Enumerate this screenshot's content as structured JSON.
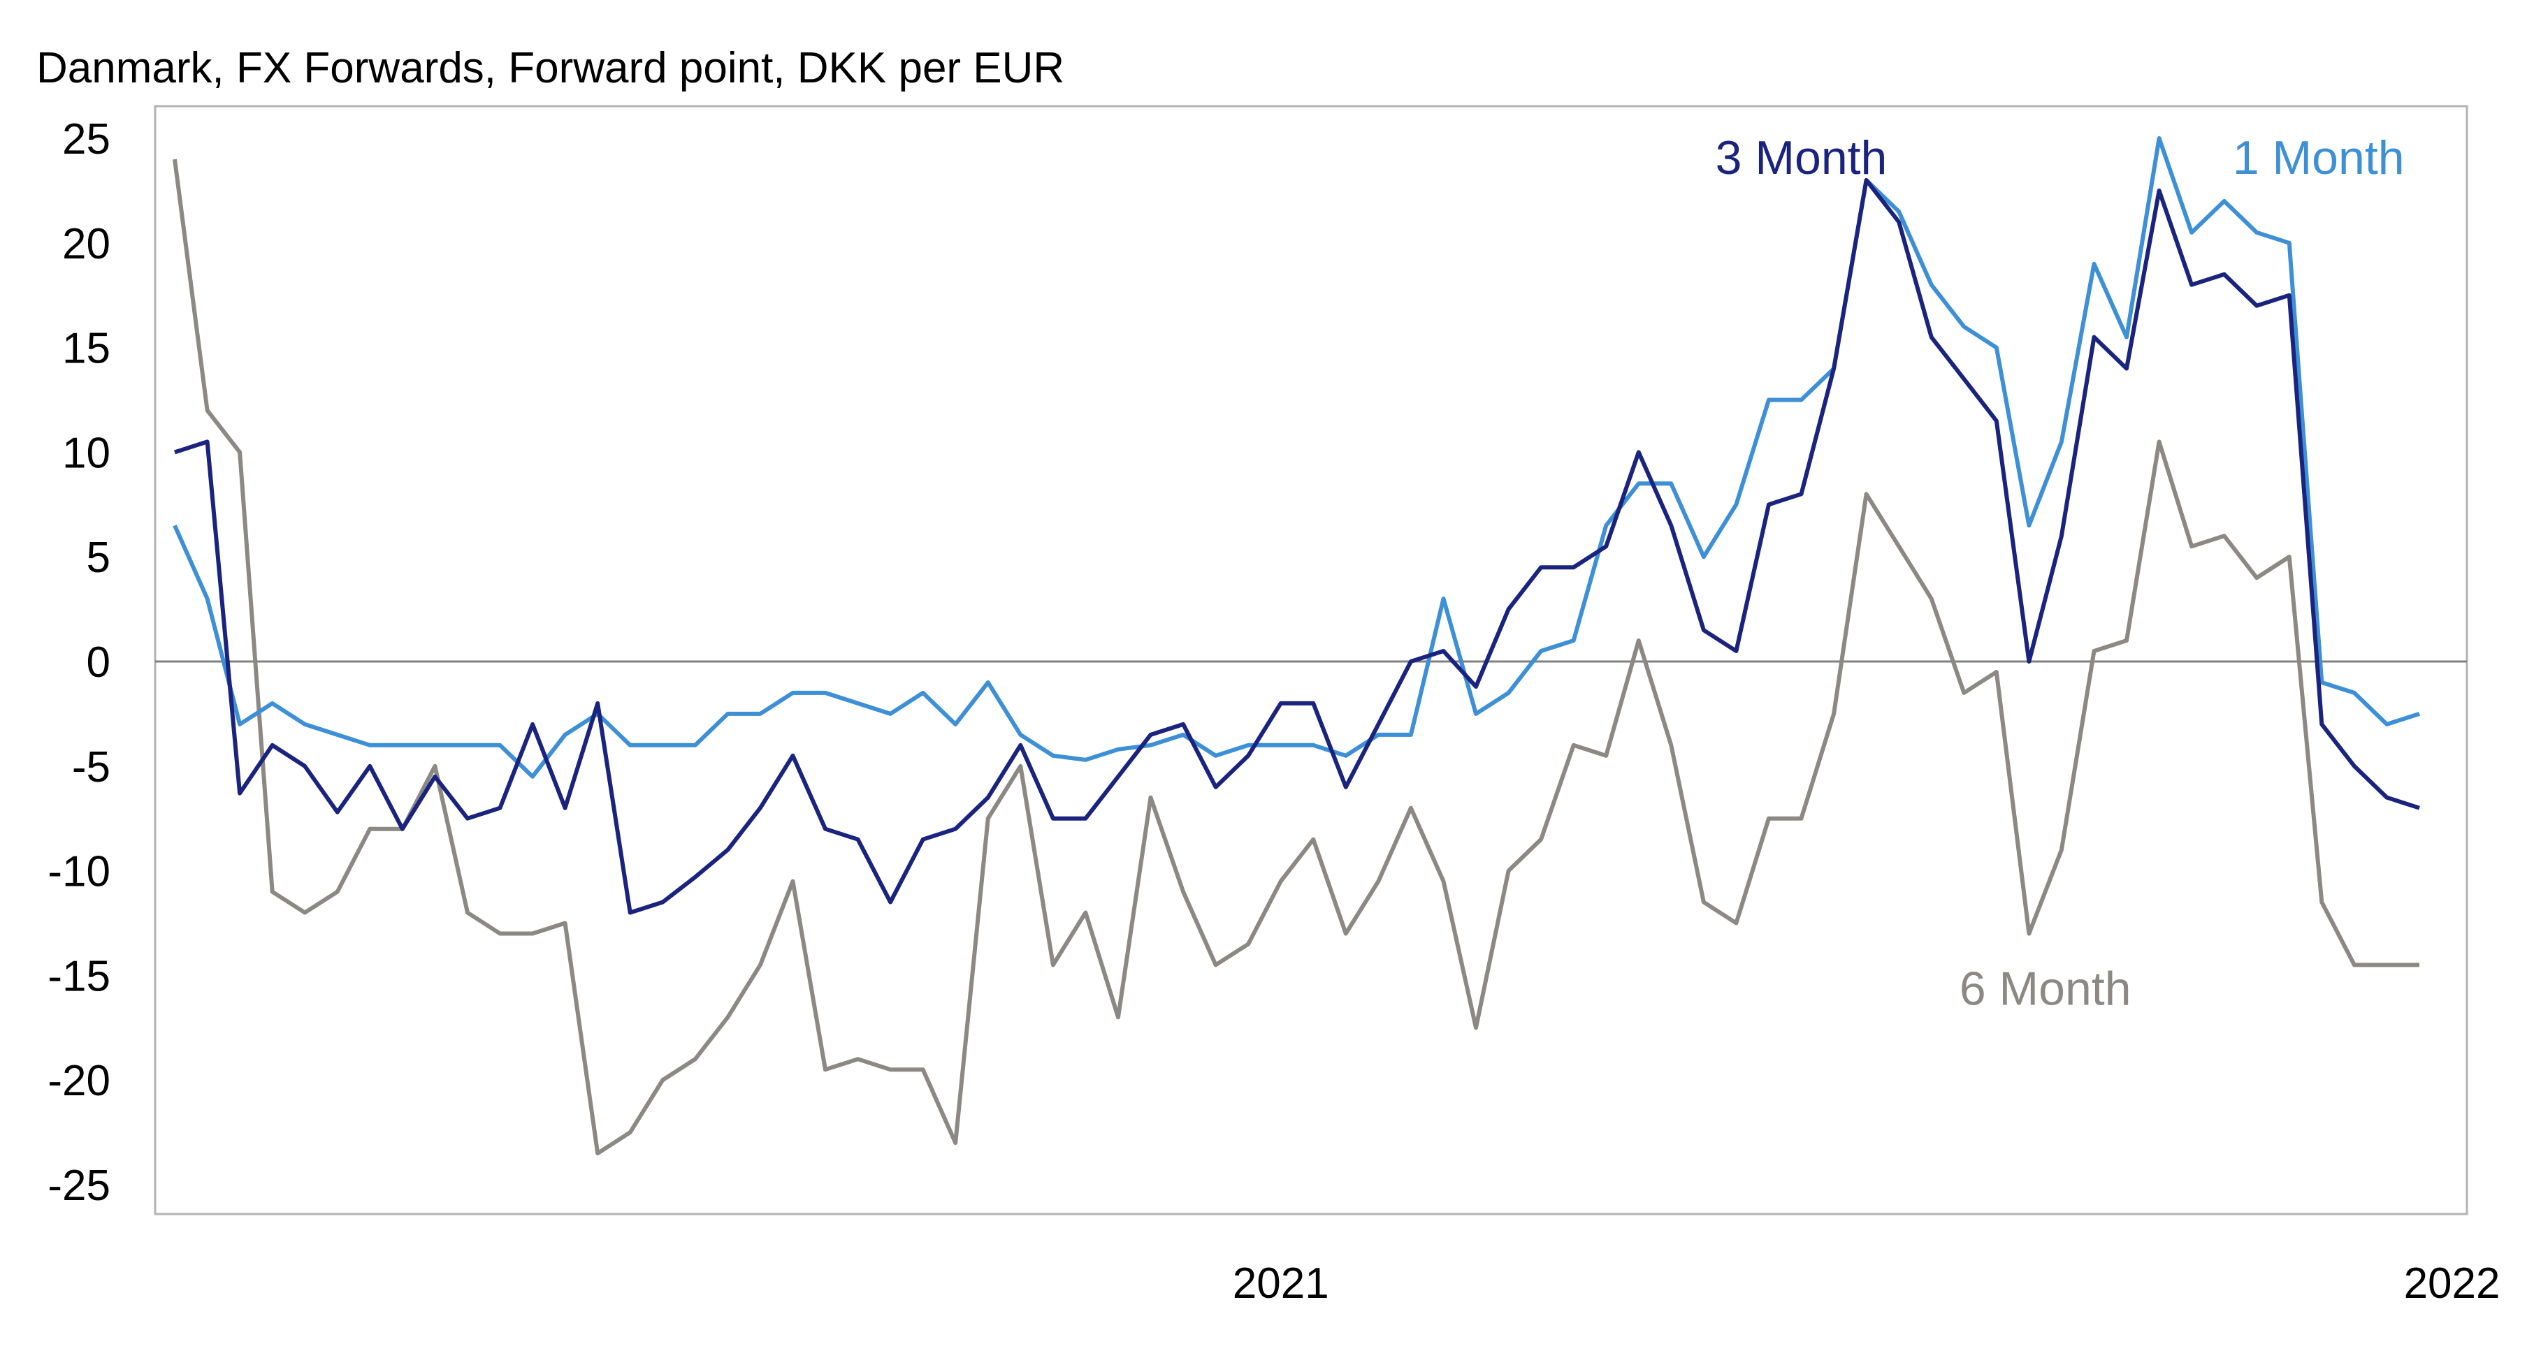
{
  "chart_data": {
    "type": "line",
    "title": "Danmark, FX Forwards, Forward point, DKK per EUR",
    "xlabel": "",
    "ylabel": "",
    "ylim": [
      -25,
      25
    ],
    "yticks": [
      25,
      20,
      15,
      10,
      5,
      0,
      -5,
      -10,
      -15,
      -20,
      -25
    ],
    "ytick_labels": [
      "25",
      "20",
      "15",
      "10",
      "5",
      "0",
      "-5",
      "-10",
      "-15",
      "-20",
      "-25"
    ],
    "x_tick_labels": [
      {
        "label": "2021",
        "index": 34
      },
      {
        "label": "2022",
        "index": 70
      }
    ],
    "zero_line": true,
    "grid": false,
    "legend": "inline labels",
    "series": [
      {
        "name": "3 Month",
        "color": "#1a237e",
        "label_index": 50,
        "label_value": 24.1,
        "values": [
          10,
          10.5,
          -6.3,
          -4,
          -5,
          -7.2,
          -5,
          -8,
          -5.5,
          -7.5,
          -7,
          -3,
          -7,
          -2,
          -12,
          -11.5,
          -10.3,
          -9,
          -7,
          -4.5,
          -8,
          -8.5,
          -11.5,
          -8.5,
          -8,
          -6.5,
          -4,
          -7.5,
          -7.5,
          -5.5,
          -3.5,
          -3,
          -6,
          -4.5,
          -2,
          -2,
          -6,
          -3,
          0,
          0.5,
          -1.2,
          2.5,
          4.5,
          4.5,
          5.5,
          10,
          6.5,
          1.5,
          0.5,
          7.5,
          8,
          14,
          23,
          21,
          15.5,
          13.5,
          11.5,
          0,
          6,
          15.5,
          14,
          22.5,
          18,
          18.5,
          17,
          17.5,
          -3,
          -5,
          -6.5,
          -7
        ]
      },
      {
        "name": "1 Month",
        "color": "#3d8fd6",
        "label_index": 65.9,
        "label_value": 24.1,
        "values": [
          6.5,
          3,
          -3,
          -2,
          -3,
          -3.5,
          -4,
          -4,
          -4,
          -4,
          -4,
          -5.5,
          -3.5,
          -2.5,
          -4,
          -4,
          -4,
          -2.5,
          -2.5,
          -1.5,
          -1.5,
          -2,
          -2.5,
          -1.5,
          -3,
          -1,
          -3.5,
          -4.5,
          -4.7,
          -4.2,
          -4,
          -3.5,
          -4.5,
          -4,
          -4,
          -4,
          -4.5,
          -3.5,
          -3.5,
          3,
          -2.5,
          -1.5,
          0.5,
          1,
          6.5,
          8.5,
          8.5,
          5,
          7.5,
          12.5,
          12.5,
          14,
          23,
          21.5,
          18,
          16,
          15,
          6.5,
          10.5,
          19,
          15.5,
          25,
          20.5,
          22,
          20.5,
          20,
          -1,
          -1.5,
          -3,
          -2.5
        ]
      },
      {
        "name": "6 Month",
        "color": "#8c8984",
        "label_index": 57.5,
        "label_value": -15.6,
        "values": [
          24,
          12,
          10,
          -11,
          -12,
          -11,
          -8,
          -8,
          -5,
          -12,
          -13,
          -13,
          -12.5,
          -23.5,
          -22.5,
          -20,
          -19,
          -17,
          -14.5,
          -10.5,
          -19.5,
          -19,
          -19.5,
          -19.5,
          -23,
          -7.5,
          -5,
          -14.5,
          -12,
          -17,
          -6.5,
          -11,
          -14.5,
          -13.5,
          -10.5,
          -8.5,
          -13,
          -10.5,
          -7,
          -10.5,
          -17.5,
          -10,
          -8.5,
          -4,
          -4.5,
          1,
          -4,
          -11.5,
          -12.5,
          -7.5,
          -7.5,
          -2.5,
          8,
          5.5,
          3,
          -1.5,
          -0.5,
          -13,
          -9,
          0.5,
          1,
          10.5,
          5.5,
          6,
          4,
          5,
          -11.5,
          -14.5,
          -14.5,
          -14.5
        ]
      }
    ]
  }
}
